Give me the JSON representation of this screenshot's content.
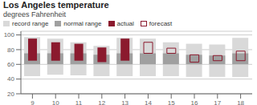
{
  "chart_data": {
    "type": "bar",
    "title": "Los Angeles temperature",
    "subtitle": "degrees Fahrenheit",
    "categories": [
      "9",
      "10",
      "11",
      "12",
      "13",
      "14",
      "15",
      "16",
      "17",
      "18"
    ],
    "series": [
      {
        "name": "record range",
        "color": "#d9d9d9",
        "values": [
          [
            44,
            97
          ],
          [
            46,
            95
          ],
          [
            45,
            90
          ],
          [
            44,
            85
          ],
          [
            44,
            96
          ],
          [
            44,
            95
          ],
          [
            44,
            90
          ],
          [
            43,
            88
          ],
          [
            43,
            87
          ],
          [
            43,
            96
          ]
        ]
      },
      {
        "name": "normal range",
        "color": "#a0a0a0",
        "values": [
          [
            60,
            75
          ],
          [
            60,
            75
          ],
          [
            60,
            75
          ],
          [
            60,
            73
          ],
          [
            60,
            75
          ],
          [
            60,
            75
          ],
          [
            60,
            75
          ],
          [
            60,
            73
          ],
          [
            60,
            72
          ],
          [
            60,
            75
          ]
        ]
      },
      {
        "name": "actual",
        "color": "#8b1a2e",
        "values": [
          [
            65,
            95
          ],
          [
            65,
            90
          ],
          [
            65,
            88
          ],
          [
            63,
            83
          ],
          [
            65,
            95
          ],
          null,
          null,
          null,
          null,
          null
        ]
      },
      {
        "name": "forecast",
        "color": "#8b1a2e",
        "line_style": "solid",
        "values": [
          null,
          null,
          null,
          null,
          null,
          [
            75,
            90
          ],
          [
            75,
            82
          ],
          [
            63,
            73
          ],
          [
            65,
            72
          ],
          [
            65,
            78
          ]
        ]
      }
    ],
    "ylim": [
      20,
      105
    ],
    "yticks": [
      20,
      40,
      60,
      80,
      100
    ],
    "grid": true,
    "legend": "upper left"
  }
}
